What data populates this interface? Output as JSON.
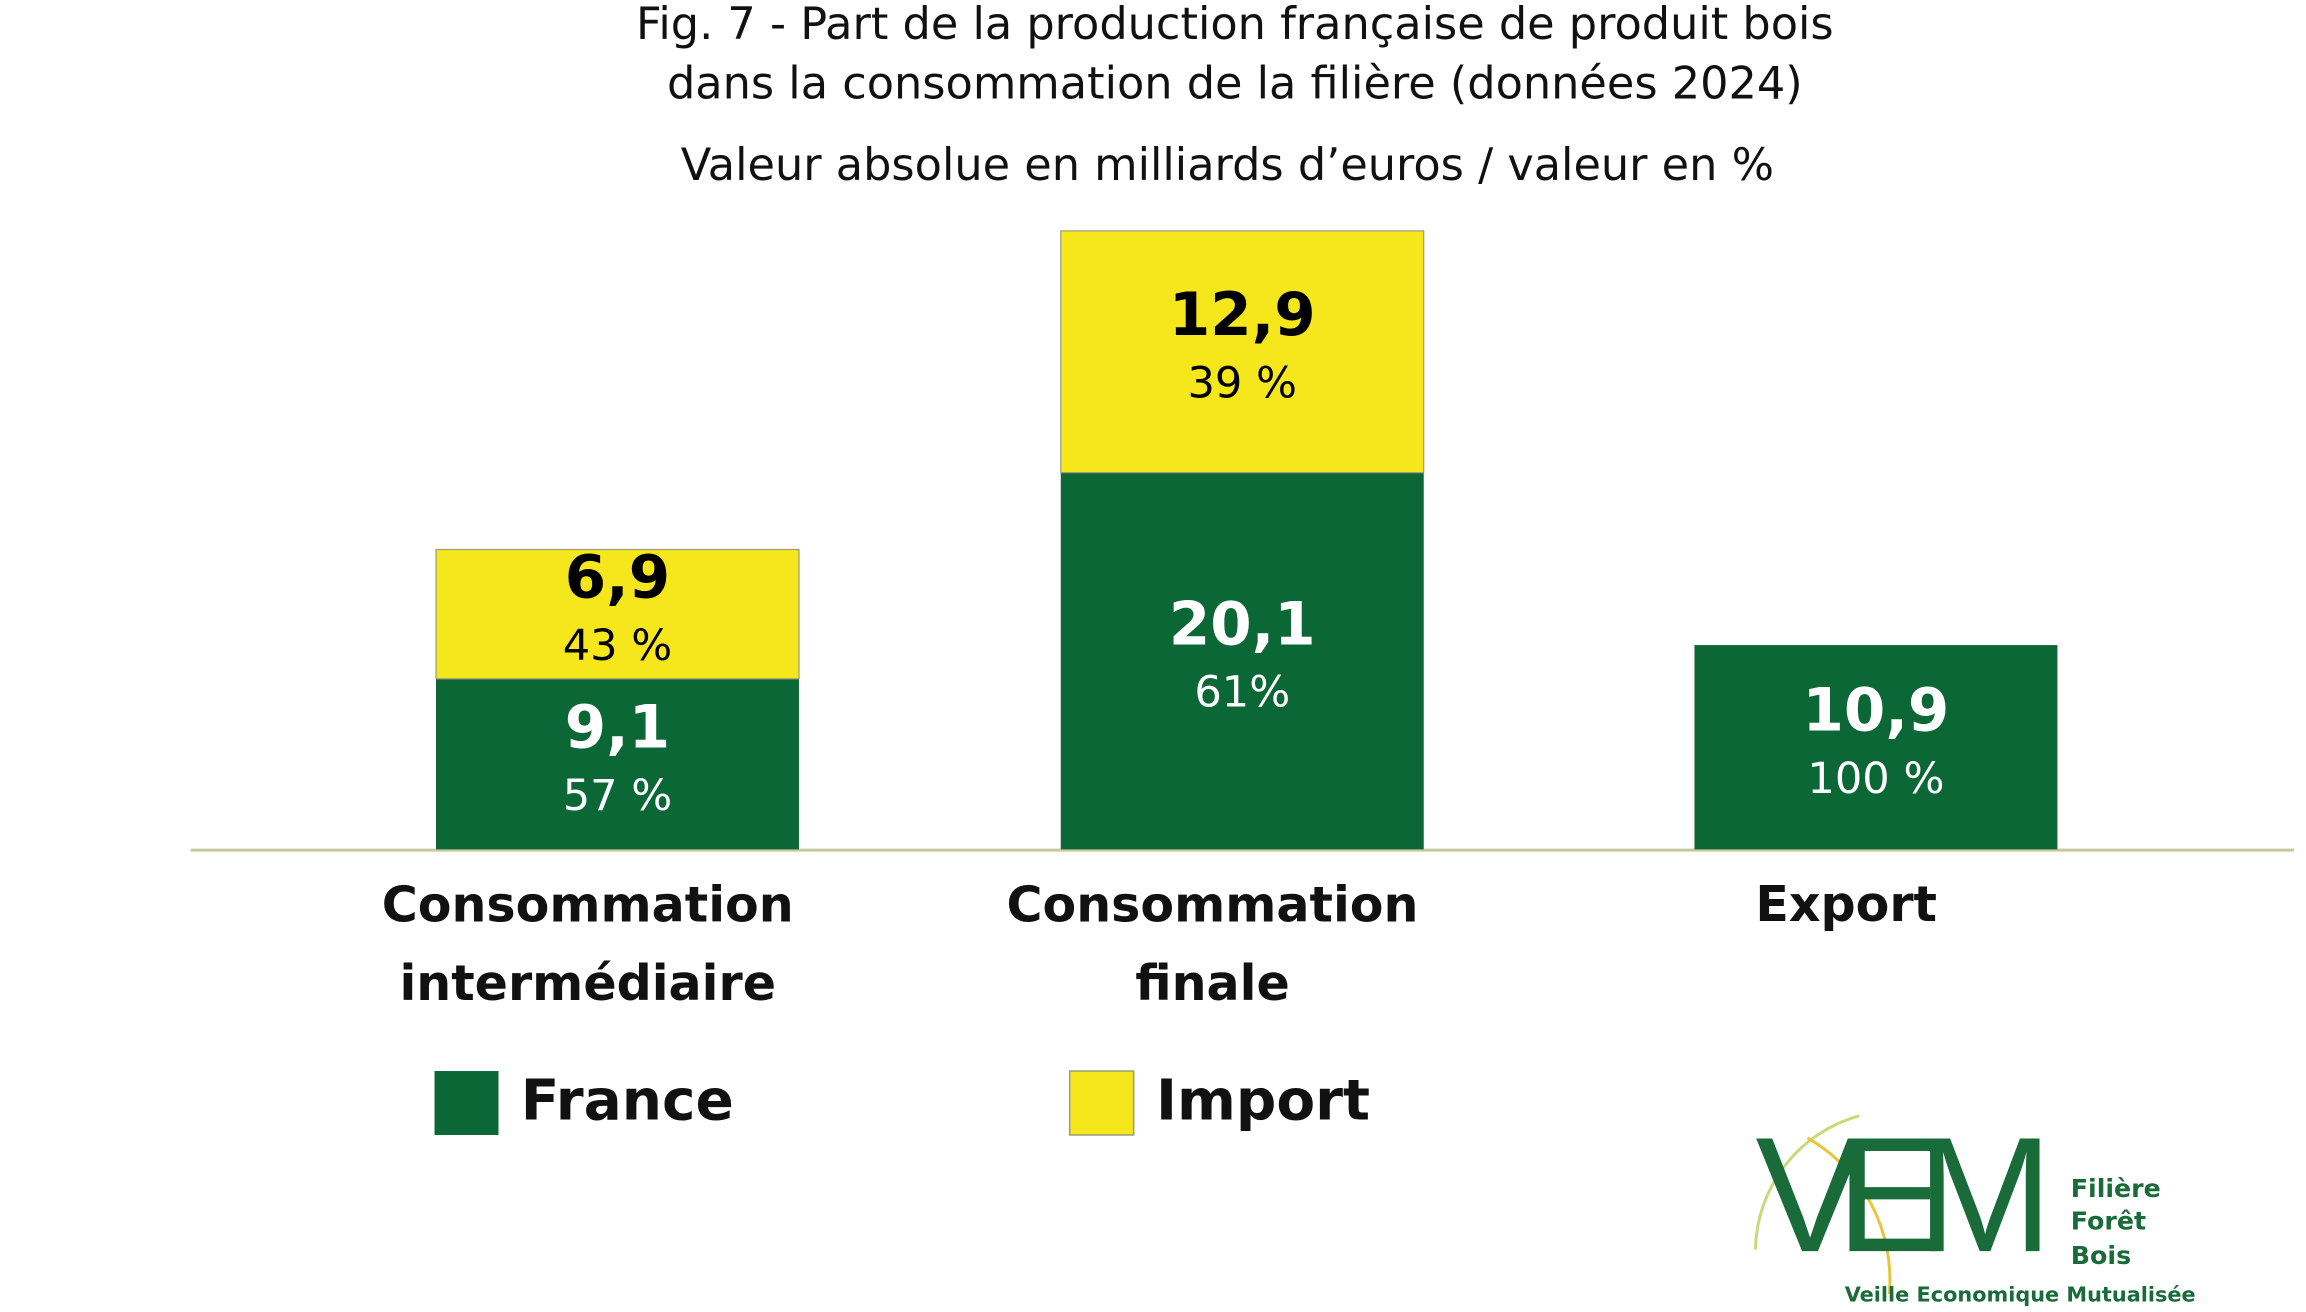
{
  "chart_data": {
    "type": "stacked_bar",
    "title": [
      "Fig. 7 - Part de la production française de produit bois",
      "dans la consommation de la filière (données 2024)"
    ],
    "subtitle": "Valeur absolue en milliards d’euros / valeur en %",
    "categories": [
      "Consommation intermédiaire",
      "Consommation finale",
      "Export"
    ],
    "series": [
      {
        "name": "France",
        "color": "#0b6836",
        "text_color": "#ffffff",
        "values": [
          9.1,
          20.1,
          10.9
        ],
        "value_labels": [
          "9,1",
          "20,1",
          "10,9"
        ],
        "shares": [
          57,
          61,
          100
        ],
        "share_labels": [
          "57 %",
          "61%",
          "100 %"
        ]
      },
      {
        "name": "Import",
        "color": "#f5e71c",
        "text_color": "#000000",
        "values": [
          6.9,
          12.9,
          null
        ],
        "value_labels": [
          "6,9",
          "12,9",
          null
        ],
        "shares": [
          43,
          39,
          null
        ],
        "share_labels": [
          "43 %",
          "39 %",
          null
        ]
      }
    ],
    "ylim": [
      0,
      33
    ]
  },
  "logo": {
    "acronym": "VEM",
    "lines": [
      "Filière",
      "Forêt",
      "Bois"
    ],
    "tagline": "Veille Economique Mutualisée"
  }
}
